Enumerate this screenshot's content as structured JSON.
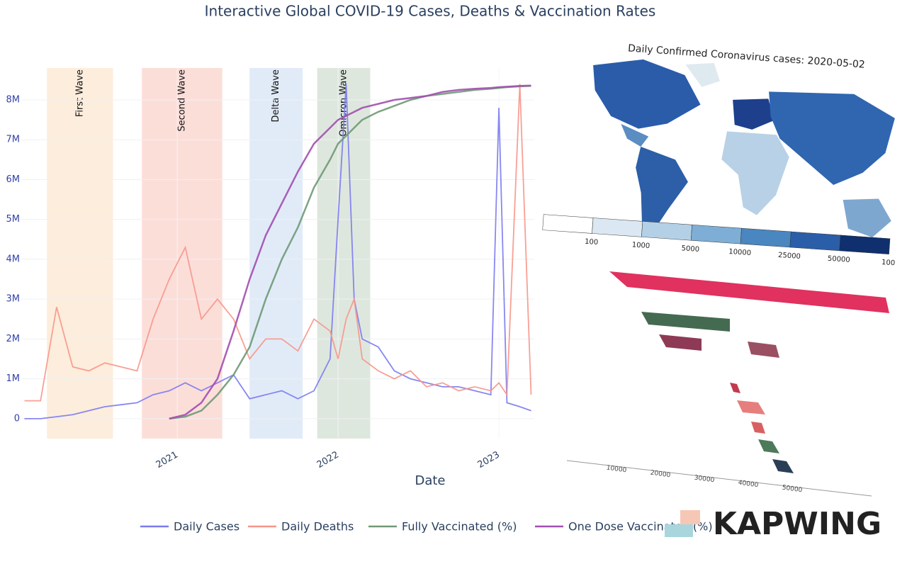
{
  "chart_data": {
    "type": "line",
    "title": "Interactive Global COVID-19 Cases, Deaths & Vaccination Rates",
    "x_label": "Date",
    "x": [
      2020.05,
      2020.15,
      2020.25,
      2020.35,
      2020.45,
      2020.55,
      2020.65,
      2020.75,
      2020.85,
      2020.95,
      2021.05,
      2021.15,
      2021.25,
      2021.35,
      2021.45,
      2021.55,
      2021.65,
      2021.75,
      2021.85,
      2021.95,
      2022.0,
      2022.05,
      2022.1,
      2022.15,
      2022.25,
      2022.35,
      2022.45,
      2022.55,
      2022.65,
      2022.75,
      2022.85,
      2022.95,
      2023.0,
      2023.05,
      2023.13,
      2023.2
    ],
    "xlim": [
      2020.03,
      2023.22
    ],
    "xticks": [
      2021,
      2022,
      2023
    ],
    "ylim": [
      -500000,
      8800000
    ],
    "yticks": [
      0,
      {
        "value": 1000000,
        "label": "1M"
      },
      {
        "value": 2000000,
        "label": "2M"
      },
      {
        "value": 3000000,
        "label": "3M"
      },
      {
        "value": 4000000,
        "label": "4M"
      },
      {
        "value": 5000000,
        "label": "5M"
      },
      {
        "value": 6000000,
        "label": "6M"
      },
      {
        "value": 7000000,
        "label": "7M"
      },
      {
        "value": 8000000,
        "label": "8M"
      }
    ],
    "grid": true,
    "legend": "bottom",
    "series": [
      {
        "name": "Daily Cases",
        "color": "#7b7bf0",
        "values": [
          0,
          0,
          50000,
          100000,
          200000,
          300000,
          350000,
          400000,
          600000,
          700000,
          900000,
          700000,
          900000,
          1100000,
          500000,
          600000,
          700000,
          500000,
          700000,
          1500000,
          5000000,
          8400000,
          3000000,
          2000000,
          1800000,
          1200000,
          1000000,
          900000,
          800000,
          800000,
          700000,
          600000,
          7800000,
          400000,
          300000,
          200000
        ]
      },
      {
        "name": "Daily Deaths",
        "color": "#f7968a",
        "values": [
          450000,
          450000,
          2800000,
          1300000,
          1200000,
          1400000,
          1300000,
          1200000,
          2500000,
          3500000,
          4300000,
          2500000,
          3000000,
          2500000,
          1500000,
          2000000,
          2000000,
          1700000,
          2500000,
          2200000,
          1500000,
          2500000,
          3000000,
          1500000,
          1200000,
          1000000,
          1200000,
          800000,
          900000,
          700000,
          800000,
          700000,
          900000,
          600000,
          8400000,
          600000
        ]
      },
      {
        "name": "Fully Vaccinated (%)",
        "color": "#6f9a76",
        "values": [
          null,
          null,
          null,
          null,
          null,
          null,
          null,
          null,
          null,
          0,
          50000,
          200000,
          600000,
          1100000,
          1800000,
          3000000,
          4000000,
          4800000,
          5800000,
          6500000,
          6900000,
          7100000,
          7300000,
          7500000,
          7700000,
          7850000,
          8000000,
          8100000,
          8150000,
          8200000,
          8250000,
          8280000,
          8300000,
          8320000,
          8340000,
          8350000
        ]
      },
      {
        "name": "One Dose Vaccinated (%)",
        "color": "#a24fb0",
        "values": [
          null,
          null,
          null,
          null,
          null,
          null,
          null,
          null,
          null,
          0,
          100000,
          400000,
          1000000,
          2200000,
          3500000,
          4600000,
          5400000,
          6200000,
          6900000,
          7300000,
          7500000,
          7600000,
          7700000,
          7800000,
          7900000,
          8000000,
          8050000,
          8100000,
          8200000,
          8250000,
          8280000,
          8300000,
          8320000,
          8330000,
          8350000,
          8360000
        ]
      }
    ],
    "bands": [
      {
        "label": "First Wave",
        "x0": 2020.19,
        "x1": 2020.6,
        "color": "#fde9d3"
      },
      {
        "label": "Second Wave",
        "x0": 2020.78,
        "x1": 2021.28,
        "color": "#fbd6cf"
      },
      {
        "label": "Delta Wave",
        "x0": 2021.45,
        "x1": 2021.78,
        "color": "#d9e6f6"
      },
      {
        "label": "Omicron Wave",
        "x0": 2021.87,
        "x1": 2022.2,
        "color": "#d6e1d6"
      }
    ]
  },
  "map": {
    "title": "Daily Confirmed Coronavirus cases: 2020-05-02",
    "colorbar_labels": [
      "100",
      "1000",
      "5000",
      "10000",
      "25000",
      "50000",
      "100"
    ]
  },
  "bar_race": {
    "axis_labels": [
      "10000",
      "20000",
      "30000",
      "40000",
      "50000"
    ]
  },
  "logo": "KAPWING"
}
